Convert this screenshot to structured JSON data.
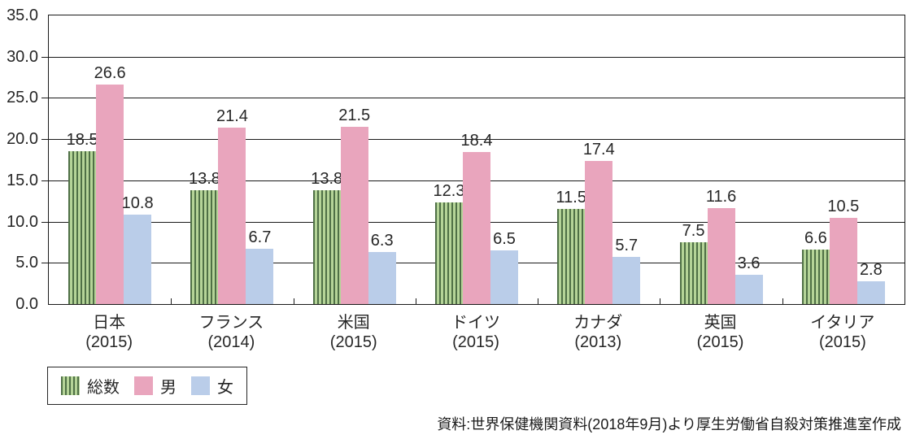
{
  "chart_data": {
    "type": "bar",
    "title": "",
    "categories": [
      "日本",
      "フランス",
      "米国",
      "ドイツ",
      "カナダ",
      "英国",
      "イタリア"
    ],
    "category_years": [
      "(2015)",
      "(2014)",
      "(2015)",
      "(2015)",
      "(2013)",
      "(2015)",
      "(2015)"
    ],
    "series": [
      {
        "name": "総数",
        "pattern": "vertical-stripes",
        "fill": "#b5d498",
        "stripe": "#4f7046",
        "values": [
          18.5,
          13.8,
          13.8,
          12.3,
          11.5,
          7.5,
          6.6
        ]
      },
      {
        "name": "男",
        "fill": "#e9a5bd",
        "values": [
          26.6,
          21.4,
          21.5,
          18.4,
          17.4,
          11.6,
          10.5
        ]
      },
      {
        "name": "女",
        "fill": "#bacde9",
        "values": [
          10.8,
          6.7,
          6.3,
          6.5,
          5.7,
          3.6,
          2.8
        ]
      }
    ],
    "ylim": [
      0,
      35
    ],
    "ytick_step": 5,
    "ytick_labels_desc": [
      "35.0",
      "30.0",
      "25.0",
      "20.0",
      "15.0",
      "10.0",
      "5.0",
      "0.0"
    ],
    "grid": true,
    "value_labels": true,
    "legend_position": "bottom-left"
  },
  "colors": {
    "axis_line": "#1a1a1a",
    "text": "#262626",
    "background": "#ffffff"
  },
  "source_note": "資料:世界保健機関資料(2018年9月)より厚生労働省自殺対策推進室作成"
}
